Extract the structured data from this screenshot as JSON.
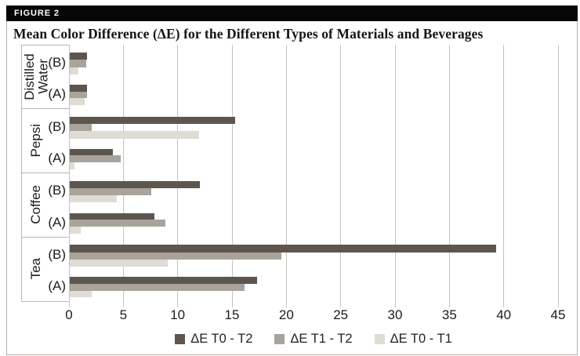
{
  "figure_label": "FIGURE 2",
  "title": "Mean Color Difference (ΔE) for the Different Types of Materials and Beverages",
  "colors": {
    "header_bg": "#060606",
    "series_dark": "#5d564e",
    "series_medium": "#a8a39d",
    "series_light": "#dfdcd6",
    "gridline": "#c6c3c0"
  },
  "legend": [
    {
      "label": "ΔE T0 - T2",
      "color": "#5d564e"
    },
    {
      "label": "ΔE T1 - T2",
      "color": "#a8a39d"
    },
    {
      "label": "ΔE T0 - T1",
      "color": "#dfdcd6"
    }
  ],
  "chart_data": {
    "type": "bar",
    "orientation": "horizontal",
    "title": "Mean Color Difference (ΔE) for the Different Types of Materials and Beverages",
    "xlabel": "",
    "ylabel": "",
    "xlim": [
      0,
      45
    ],
    "xticks": [
      0,
      5,
      10,
      15,
      20,
      25,
      30,
      35,
      40,
      45
    ],
    "grid": true,
    "legend_position": "bottom",
    "groups": [
      "Distilled Water",
      "Pepsi",
      "Coffee",
      "Tea"
    ],
    "subgroups": [
      "(B)",
      "(A)"
    ],
    "series_names": [
      "ΔE T0 - T2",
      "ΔE T1 - T2",
      "ΔE T0 - T1"
    ],
    "series_colors": [
      "#5d564e",
      "#a8a39d",
      "#dfdcd6"
    ],
    "rows": [
      {
        "group": "Distilled Water",
        "sub": "(B)",
        "values": [
          1.6,
          1.5,
          0.8
        ]
      },
      {
        "group": "Distilled Water",
        "sub": "(A)",
        "values": [
          1.6,
          1.6,
          1.4
        ]
      },
      {
        "group": "Pepsi",
        "sub": "(B)",
        "values": [
          15.2,
          2.0,
          11.9
        ]
      },
      {
        "group": "Pepsi",
        "sub": "(A)",
        "values": [
          4.0,
          4.7,
          0.4
        ]
      },
      {
        "group": "Coffee",
        "sub": "(B)",
        "values": [
          12.0,
          7.5,
          4.3
        ]
      },
      {
        "group": "Coffee",
        "sub": "(A)",
        "values": [
          7.8,
          8.8,
          1.0
        ]
      },
      {
        "group": "Tea",
        "sub": "(B)",
        "values": [
          39.2,
          19.5,
          9.0
        ]
      },
      {
        "group": "Tea",
        "sub": "(A)",
        "values": [
          17.2,
          16.1,
          2.0
        ]
      }
    ]
  }
}
